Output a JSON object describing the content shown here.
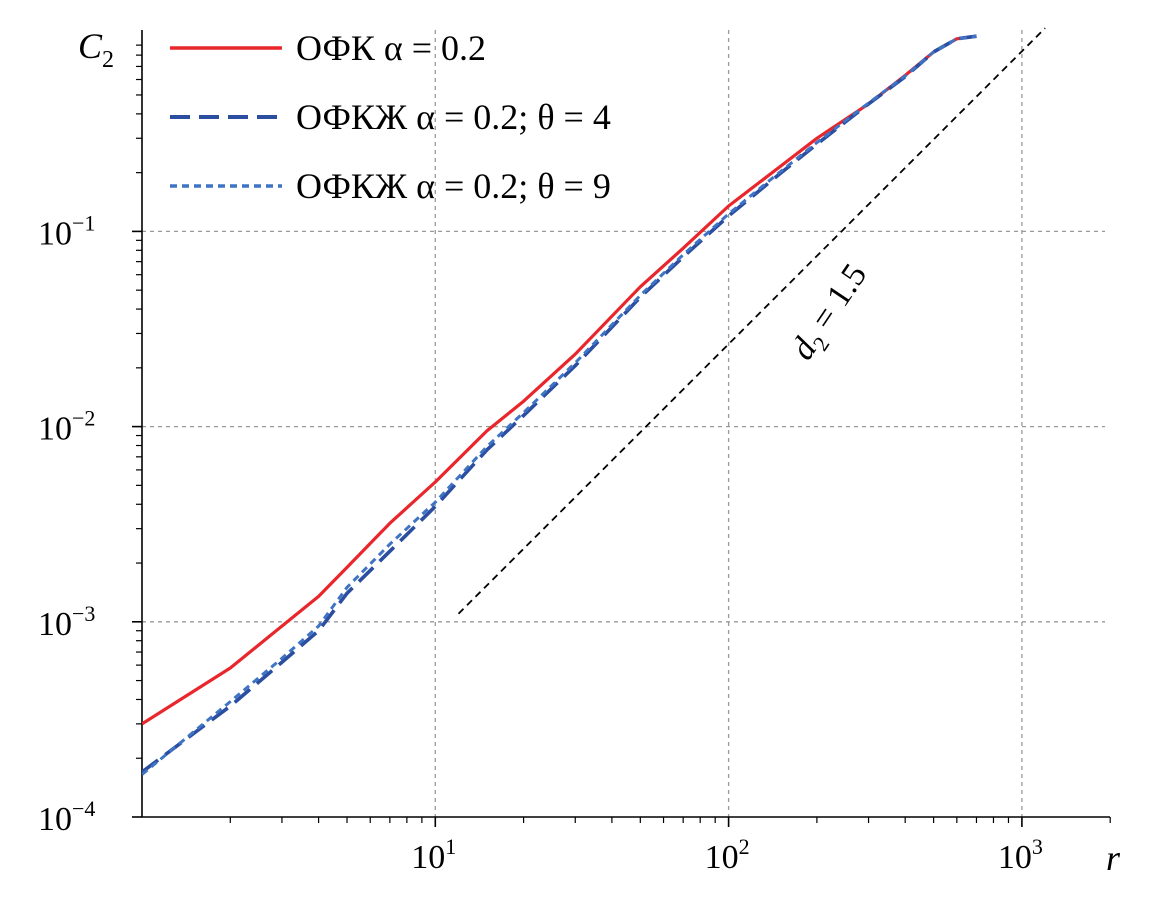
{
  "chart_data": {
    "type": "line",
    "title": "",
    "xlabel": "r",
    "ylabel": "C",
    "ylabel_sub": "2",
    "x_scale": "log",
    "y_scale": "log",
    "xlim": [
      1,
      2000
    ],
    "ylim": [
      0.0001,
      1
    ],
    "grid": true,
    "legend_position": "top-left",
    "x_ticks": [
      {
        "value": 10,
        "base": "10",
        "exp": "1"
      },
      {
        "value": 100,
        "base": "10",
        "exp": "2"
      },
      {
        "value": 1000,
        "base": "10",
        "exp": "3"
      }
    ],
    "y_ticks": [
      {
        "value": 0.1,
        "base": "10",
        "exp": "−1"
      },
      {
        "value": 0.01,
        "base": "10",
        "exp": "−2"
      },
      {
        "value": 0.001,
        "base": "10",
        "exp": "−3"
      },
      {
        "value": 0.0001,
        "base": "10",
        "exp": "−4"
      }
    ],
    "series": [
      {
        "name": "ОФК α = 0.2",
        "color": "#e8262b",
        "style": "solid",
        "x": [
          1,
          2,
          3,
          4,
          5,
          7,
          10,
          15,
          20,
          30,
          50,
          70,
          100,
          150,
          200,
          300,
          400,
          500,
          600,
          700
        ],
        "y": [
          0.0003,
          0.00058,
          0.00095,
          0.00135,
          0.0019,
          0.0032,
          0.0052,
          0.0095,
          0.0135,
          0.0235,
          0.052,
          0.082,
          0.135,
          0.215,
          0.3,
          0.45,
          0.63,
          0.83,
          0.97,
          1.0
        ]
      },
      {
        "name": "ОФКЖ α = 0.2; θ = 4",
        "color": "#2b4ea0",
        "style": "dashed",
        "x": [
          1,
          2,
          3,
          4,
          5,
          7,
          10,
          15,
          20,
          30,
          50,
          70,
          100,
          150,
          200,
          300,
          400,
          500,
          600,
          700
        ],
        "y": [
          0.00017,
          0.00037,
          0.00062,
          0.0009,
          0.0014,
          0.0023,
          0.0039,
          0.0076,
          0.0114,
          0.0205,
          0.046,
          0.074,
          0.12,
          0.198,
          0.28,
          0.45,
          0.62,
          0.83,
          0.97,
          1.0
        ]
      },
      {
        "name": "ОФКЖ α = 0.2; θ = 9",
        "color": "#3f73c4",
        "style": "dotted",
        "x": [
          1,
          2,
          3,
          4,
          5,
          7,
          10,
          15,
          20,
          30,
          50,
          70,
          100,
          150,
          200,
          300,
          400,
          500,
          600,
          700
        ],
        "y": [
          0.000165,
          0.00039,
          0.00065,
          0.00095,
          0.0015,
          0.0025,
          0.0041,
          0.0079,
          0.0118,
          0.0212,
          0.047,
          0.076,
          0.123,
          0.202,
          0.285,
          0.455,
          0.625,
          0.83,
          0.97,
          1.0
        ]
      }
    ],
    "reference_line": {
      "label_main": "d",
      "label_sub": "2",
      "label_rest": " = 1.5",
      "slope": 1.5,
      "color": "#000000",
      "x": [
        12,
        1200
      ],
      "y": [
        0.0011,
        1.1
      ]
    }
  }
}
